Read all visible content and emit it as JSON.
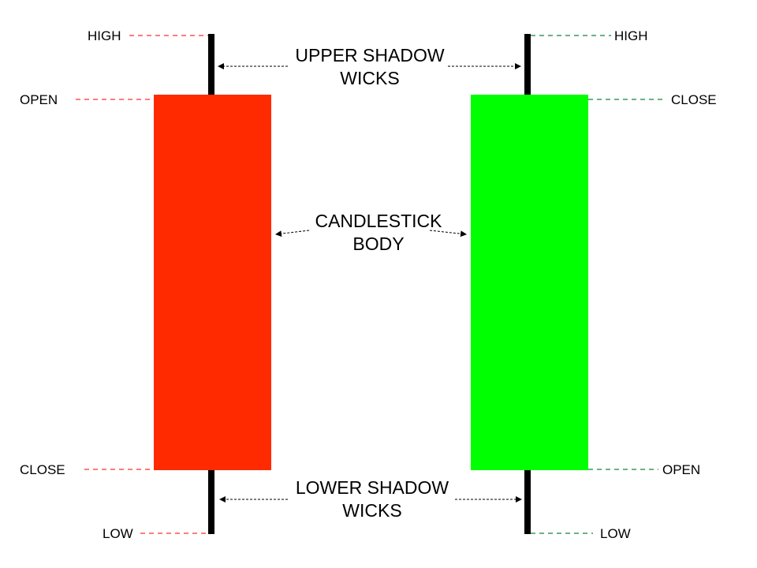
{
  "colors": {
    "bearish_body": "#ff2a00",
    "bearish_dash": "#ff5050",
    "bullish_body": "#00ff00",
    "bullish_dash": "#3a9a5a",
    "wick": "#000000"
  },
  "left_candle": {
    "high": "HIGH",
    "open": "OPEN",
    "close": "CLOSE",
    "low": "LOW"
  },
  "right_candle": {
    "high": "HIGH",
    "close": "CLOSE",
    "open": "OPEN",
    "low": "LOW"
  },
  "callouts": {
    "upper": {
      "line1": "UPPER SHADOW",
      "line2": "WICKS"
    },
    "body": {
      "line1": "CANDLESTICK",
      "line2": "BODY"
    },
    "lower": {
      "line1": "LOWER SHADOW",
      "line2": "WICKS"
    }
  }
}
